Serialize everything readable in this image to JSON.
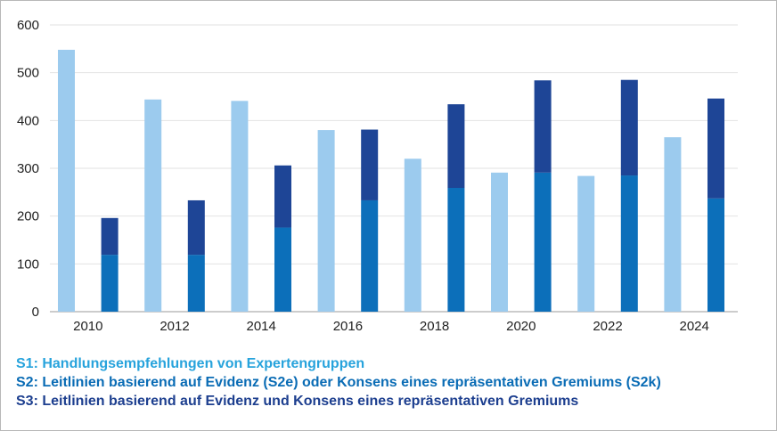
{
  "chart_data": {
    "type": "bar",
    "stacked": true,
    "x": [
      "2010",
      "2011",
      "2012",
      "2013",
      "2014",
      "2015",
      "2016",
      "2017",
      "2018",
      "2019",
      "2020",
      "2021",
      "2022",
      "2023",
      "2024",
      "2025"
    ],
    "x_tick_labels": [
      "2010",
      "2012",
      "2014",
      "2016",
      "2018",
      "2020",
      "2022",
      "2024"
    ],
    "series": [
      {
        "key": "S1",
        "color": "#9ccbee",
        "values": [
          548,
          0,
          444,
          0,
          441,
          0,
          380,
          0,
          320,
          0,
          291,
          0,
          284,
          0,
          365,
          0
        ]
      },
      {
        "key": "S2",
        "color": "#0c6fba",
        "values": [
          0,
          119,
          0,
          119,
          0,
          176,
          0,
          233,
          0,
          259,
          0,
          291,
          0,
          285,
          0,
          237
        ]
      },
      {
        "key": "S3",
        "color": "#1e4596",
        "values": [
          0,
          77,
          0,
          114,
          0,
          130,
          0,
          148,
          0,
          175,
          0,
          193,
          0,
          200,
          0,
          209
        ]
      }
    ],
    "ylim": [
      0,
      600
    ],
    "yticks": [
      0,
      100,
      200,
      300,
      400,
      500,
      600
    ],
    "grid": true,
    "legend_position": "bottom-left"
  },
  "legend": [
    {
      "text": "S1: Handlungsempfehlungen von Expertengruppen",
      "color": "#27a3dc"
    },
    {
      "text": "S2: Leitlinien basierend auf Evidenz (S2e) oder Konsens eines repräsentativen Gremiums (S2k)",
      "color": "#0a6cb5"
    },
    {
      "text": "S3: Leitlinien basierend auf Evidenz und Konsens eines repräsentativen Gremiums",
      "color": "#1d3f8f"
    }
  ]
}
